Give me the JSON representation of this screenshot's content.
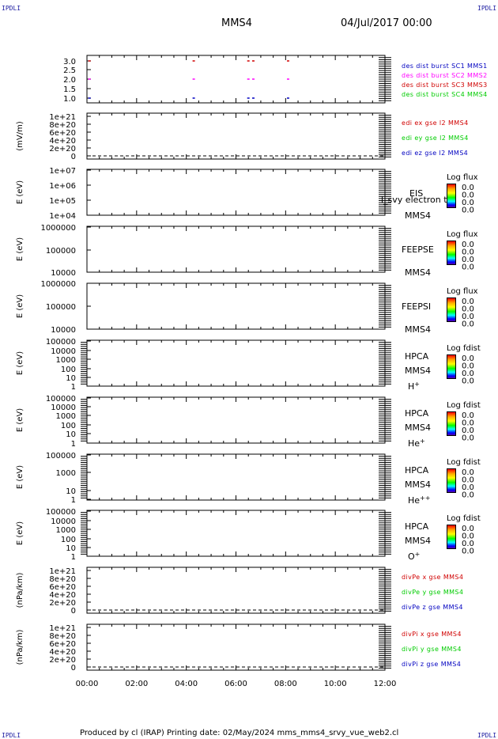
{
  "header": {
    "title": "MMS4",
    "date": "04/Jul/2017 00:00",
    "corner_tl": "IPDLI",
    "corner_tr": "IPDLI",
    "corner_bl": "IPDLI",
    "corner_br": "IPDLI"
  },
  "footer": {
    "text": "Produced by cl (IRAP)   Printing date: 02/May/2024   mms_mms4_srvy_vue_web2.cl"
  },
  "colors": {
    "red": "#d00000",
    "magenta": "#ff00ff",
    "green": "#00cc00",
    "blue": "#0000c0"
  },
  "chart_data": {
    "type": "line",
    "x_ticks": [
      "00:00",
      "02:00",
      "04:00",
      "06:00",
      "08:00",
      "10:00",
      "12:00"
    ],
    "xlim_hours": [
      0,
      12
    ],
    "panels": [
      {
        "id": "burst",
        "yticks": [
          "3.0",
          "2.5",
          "2.0",
          "1.5",
          "1.0"
        ],
        "ylabel": "",
        "legend": [
          {
            "text": "des dist burst SC1 MMS1",
            "color": "#0000c0"
          },
          {
            "text": "des dist burst SC2 MMS2",
            "color": "#ff00ff"
          },
          {
            "text": "des dist burst SC3 MMS3",
            "color": "#d00000"
          },
          {
            "text": "des dist burst SC4 MMS4",
            "color": "#00cc00"
          }
        ],
        "series": [
          {
            "name": "des dist burst SC3 MMS3",
            "y": 3.0,
            "x": [
              0.1,
              4.3,
              6.5,
              6.7,
              8.1
            ],
            "color": "#d00000"
          },
          {
            "name": "des dist burst SC2 MMS2",
            "y": 2.0,
            "x": [
              0.1,
              4.3,
              6.5,
              6.7,
              8.1
            ],
            "color": "#ff00ff"
          },
          {
            "name": "des dist burst SC1 MMS1",
            "y": 1.0,
            "x": [
              0.1,
              4.3,
              6.5,
              6.7,
              8.1
            ],
            "color": "#0000c0"
          }
        ]
      },
      {
        "id": "edi",
        "yticks": [
          "1e+21",
          "8e+20",
          "6e+20",
          "4e+20",
          "2e+20",
          "0"
        ],
        "ylabel": "(mV/m)",
        "legend": [
          {
            "text": "edi ex gse l2 MMS4",
            "color": "#d00000"
          },
          {
            "text": "edi ey gse l2 MMS4",
            "color": "#00cc00"
          },
          {
            "text": "edi ez gse l2 MMS4",
            "color": "#0000c0"
          }
        ]
      },
      {
        "id": "eis",
        "yticks": [
          "1e+07",
          "1e+06",
          "1e+05",
          "1e+04"
        ],
        "ylabel": "E (eV)",
        "side": [
          "EIS",
          "MMS4"
        ],
        "extra": "l_svy electron to",
        "cbtitle": "Log flux",
        "cbvals": [
          "0.0",
          "0.0",
          "0.0",
          "0.0"
        ]
      },
      {
        "id": "feepse",
        "yticks": [
          "1000000",
          "100000",
          "10000"
        ],
        "ylabel": "E (eV)",
        "side": [
          "FEEPSE",
          "MMS4"
        ],
        "cbtitle": "Log flux",
        "cbvals": [
          "0.0",
          "0.0",
          "0.0",
          "0.0"
        ]
      },
      {
        "id": "feepsi",
        "yticks": [
          "1000000",
          "100000",
          "10000"
        ],
        "ylabel": "E (eV)",
        "side": [
          "FEEPSI",
          "MMS4"
        ],
        "cbtitle": "Log flux",
        "cbvals": [
          "0.0",
          "0.0",
          "0.0",
          "0.0"
        ]
      },
      {
        "id": "hpca-h",
        "yticks": [
          "100000",
          "10000",
          "1000",
          "100",
          "10",
          "1"
        ],
        "ylabel": "E (eV)",
        "side": [
          "HPCA",
          "MMS4"
        ],
        "species": "H",
        "charge": "+",
        "cbtitle": "Log fdist",
        "cbvals": [
          "0.0",
          "0.0",
          "0.0",
          "0.0"
        ]
      },
      {
        "id": "hpca-he",
        "yticks": [
          "100000",
          "10000",
          "1000",
          "100",
          "10",
          "1"
        ],
        "ylabel": "E (eV)",
        "side": [
          "HPCA",
          "MMS4"
        ],
        "species": "He",
        "charge": "+",
        "cbtitle": "Log fdist",
        "cbvals": [
          "0.0",
          "0.0",
          "0.0",
          "0.0"
        ]
      },
      {
        "id": "hpca-he2",
        "yticks": [
          "100000",
          "1000",
          "10",
          "1"
        ],
        "ylabel": "E (eV)",
        "side": [
          "HPCA",
          "MMS4"
        ],
        "species": "He",
        "charge": "++",
        "cbtitle": "Log fdist",
        "cbvals": [
          "0.0",
          "0.0",
          "0.0",
          "0.0"
        ]
      },
      {
        "id": "hpca-o",
        "yticks": [
          "100000",
          "10000",
          "1000",
          "100",
          "10",
          "1"
        ],
        "ylabel": "E (eV)",
        "side": [
          "HPCA",
          "MMS4"
        ],
        "species": "O",
        "charge": "+",
        "cbtitle": "Log fdist",
        "cbvals": [
          "0.0",
          "0.0",
          "0.0",
          "0.0"
        ]
      },
      {
        "id": "divpe",
        "yticks": [
          "1e+21",
          "8e+20",
          "6e+20",
          "4e+20",
          "2e+20",
          "0"
        ],
        "ylabel": "(nPa/km)",
        "legend": [
          {
            "text": "divPe x gse MMS4",
            "color": "#d00000"
          },
          {
            "text": "divPe y gse MMS4",
            "color": "#00cc00"
          },
          {
            "text": "divPe z gse MMS4",
            "color": "#0000c0"
          }
        ]
      },
      {
        "id": "divpi",
        "yticks": [
          "1e+21",
          "8e+20",
          "6e+20",
          "4e+20",
          "2e+20",
          "0"
        ],
        "ylabel": "(nPa/km)",
        "legend": [
          {
            "text": "divPi x gse MMS4",
            "color": "#d00000"
          },
          {
            "text": "divPi y gse MMS4",
            "color": "#00cc00"
          },
          {
            "text": "divPi z gse MMS4",
            "color": "#0000c0"
          }
        ]
      }
    ]
  }
}
